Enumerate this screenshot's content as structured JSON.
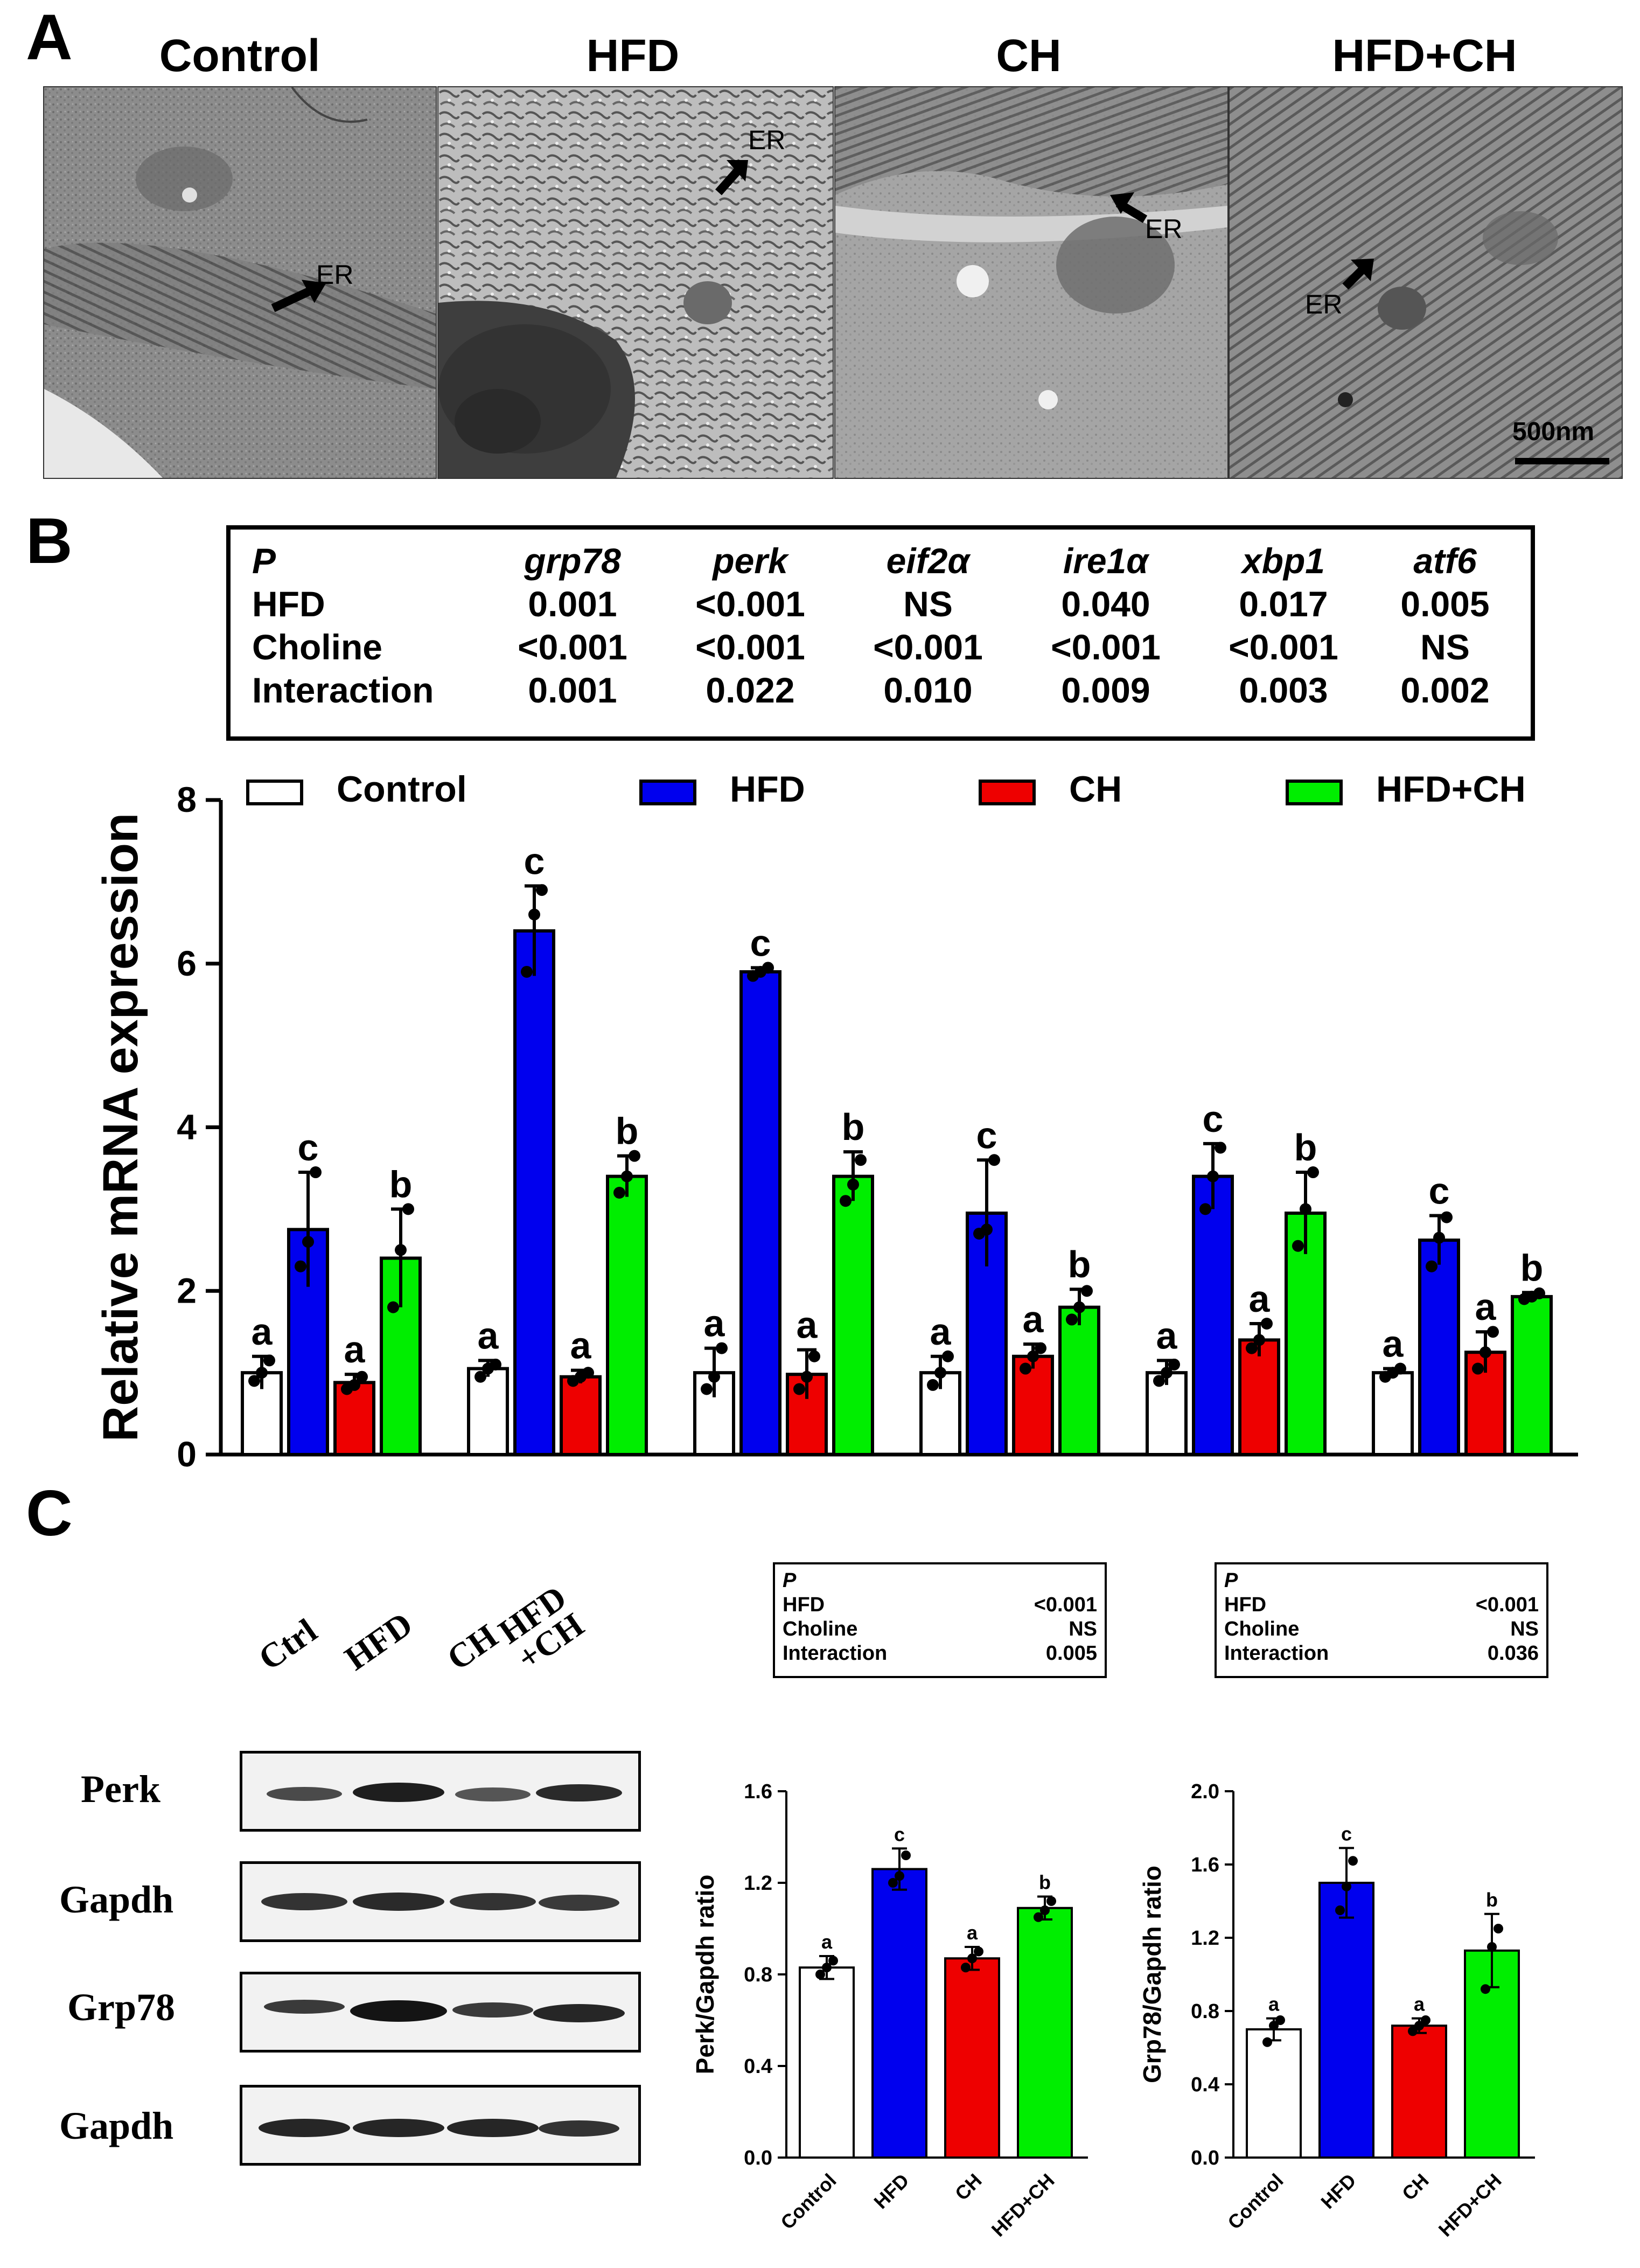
{
  "panels": {
    "a": "A",
    "b": "B",
    "c": "C"
  },
  "panel_a": {
    "titles": [
      "Control",
      "HFD",
      "CH",
      "HFD+CH"
    ],
    "er_label": "ER",
    "scale_bar": "500nm"
  },
  "panel_b_table": {
    "headers": [
      "P",
      "grp78",
      "perk",
      "eif2α",
      "ire1α",
      "xbp1",
      "atf6"
    ],
    "rows": [
      {
        "label": "HFD",
        "values": [
          "0.001",
          "<0.001",
          "NS",
          "0.040",
          "0.017",
          "0.005"
        ]
      },
      {
        "label": "Choline",
        "values": [
          "<0.001",
          "<0.001",
          "<0.001",
          "<0.001",
          "<0.001",
          "NS"
        ]
      },
      {
        "label": "Interaction",
        "values": [
          "0.001",
          "0.022",
          "0.010",
          "0.009",
          "0.003",
          "0.002"
        ]
      }
    ]
  },
  "panel_c": {
    "lane_labels": [
      "Ctrl",
      "HFD",
      "CH",
      "HFD\n+CH"
    ],
    "blot_labels": [
      "Perk",
      "Gapdh",
      "Grp78",
      "Gapdh"
    ],
    "perk_table": {
      "header": "P",
      "rows": [
        {
          "label": "HFD",
          "value": "<0.001"
        },
        {
          "label": "Choline",
          "value": "NS"
        },
        {
          "label": "Interaction",
          "value": "0.005"
        }
      ]
    },
    "grp78_table": {
      "header": "P",
      "rows": [
        {
          "label": "HFD",
          "value": "<0.001"
        },
        {
          "label": "Choline",
          "value": "NS"
        },
        {
          "label": "Interaction",
          "value": "0.036"
        }
      ]
    }
  },
  "colors": {
    "Control": "#ffffff",
    "HFD": "#0000ee",
    "CH": "#ee0000",
    "HFD+CH": "#00ee00"
  },
  "chart_data": [
    {
      "type": "bar",
      "id": "mrna",
      "ylabel": "Relative mRNA expression",
      "ylim": [
        0,
        8
      ],
      "yticks": [
        0,
        2,
        4,
        6,
        8
      ],
      "categories": [
        "grp78",
        "perk",
        "eif2α",
        "ire1α",
        "xbp1",
        "atf6"
      ],
      "series": [
        {
          "name": "Control",
          "values": [
            1.0,
            1.05,
            1.0,
            1.0,
            1.0,
            1.0
          ],
          "errors": [
            0.2,
            0.1,
            0.3,
            0.2,
            0.15,
            0.05
          ],
          "letters": [
            "a",
            "a",
            "a",
            "a",
            "a",
            "a"
          ]
        },
        {
          "name": "HFD",
          "values": [
            2.75,
            6.4,
            5.9,
            2.95,
            3.4,
            2.62
          ],
          "errors": [
            0.7,
            0.55,
            0.05,
            0.65,
            0.4,
            0.3
          ],
          "letters": [
            "c",
            "c",
            "c",
            "c",
            "c",
            "c"
          ]
        },
        {
          "name": "CH",
          "values": [
            0.88,
            0.95,
            0.98,
            1.2,
            1.4,
            1.25
          ],
          "errors": [
            0.1,
            0.08,
            0.3,
            0.15,
            0.2,
            0.25
          ],
          "letters": [
            "a",
            "a",
            "a",
            "a",
            "a",
            "a"
          ]
        },
        {
          "name": "HFD+CH",
          "values": [
            2.4,
            3.4,
            3.4,
            1.8,
            2.95,
            1.93
          ],
          "errors": [
            0.6,
            0.25,
            0.3,
            0.22,
            0.5,
            0.05
          ],
          "letters": [
            "b",
            "b",
            "b",
            "b",
            "b",
            "b"
          ]
        }
      ],
      "points": [
        [
          [
            0.9,
            1.0,
            1.15
          ],
          [
            2.3,
            2.6,
            3.45
          ],
          [
            0.8,
            0.85,
            0.95
          ],
          [
            1.8,
            2.5,
            3.0
          ]
        ],
        [
          [
            0.95,
            1.05,
            1.1
          ],
          [
            5.9,
            6.6,
            6.9
          ],
          [
            0.9,
            0.95,
            1.0
          ],
          [
            3.2,
            3.4,
            3.65
          ]
        ],
        [
          [
            0.8,
            0.95,
            1.3
          ],
          [
            5.85,
            5.9,
            5.95
          ],
          [
            0.8,
            0.95,
            1.2
          ],
          [
            3.1,
            3.3,
            3.6
          ]
        ],
        [
          [
            0.85,
            1.0,
            1.2
          ],
          [
            2.7,
            2.75,
            3.6
          ],
          [
            1.05,
            1.2,
            1.3
          ],
          [
            1.65,
            1.8,
            2.0
          ]
        ],
        [
          [
            0.9,
            1.0,
            1.1
          ],
          [
            3.0,
            3.4,
            3.75
          ],
          [
            1.3,
            1.4,
            1.6
          ],
          [
            2.55,
            3.0,
            3.45
          ]
        ],
        [
          [
            0.95,
            1.0,
            1.05
          ],
          [
            2.3,
            2.65,
            2.9
          ],
          [
            1.05,
            1.25,
            1.5
          ],
          [
            1.9,
            1.93,
            1.97
          ]
        ]
      ]
    },
    {
      "type": "bar",
      "id": "perk",
      "ylabel": "Perk/Gapdh ratio",
      "ylim": [
        0,
        1.6
      ],
      "yticks": [
        "0.0",
        "0.4",
        "0.8",
        "1.2",
        "1.6"
      ],
      "categories": [
        "Control",
        "HFD",
        "CH",
        "HFD+CH"
      ],
      "values": [
        0.83,
        1.26,
        0.87,
        1.09
      ],
      "errors": [
        0.05,
        0.09,
        0.05,
        0.05
      ],
      "letters": [
        "a",
        "c",
        "a",
        "b"
      ],
      "points": [
        [
          0.8,
          0.83,
          0.86
        ],
        [
          1.2,
          1.23,
          1.32
        ],
        [
          0.83,
          0.87,
          0.9
        ],
        [
          1.05,
          1.08,
          1.12
        ]
      ]
    },
    {
      "type": "bar",
      "id": "grp78",
      "ylabel": "Grp78/Gapdh ratio",
      "ylim": [
        0,
        2.0
      ],
      "yticks": [
        "0.0",
        "0.4",
        "0.8",
        "1.2",
        "1.6",
        "2.0"
      ],
      "categories": [
        "Control",
        "HFD",
        "CH",
        "HFD+CH"
      ],
      "values": [
        0.7,
        1.5,
        0.72,
        1.13
      ],
      "errors": [
        0.06,
        0.19,
        0.04,
        0.2
      ],
      "letters": [
        "a",
        "c",
        "a",
        "b"
      ],
      "points": [
        [
          0.63,
          0.72,
          0.75
        ],
        [
          1.35,
          1.48,
          1.62
        ],
        [
          0.69,
          0.72,
          0.75
        ],
        [
          0.92,
          1.15,
          1.25
        ]
      ]
    }
  ]
}
